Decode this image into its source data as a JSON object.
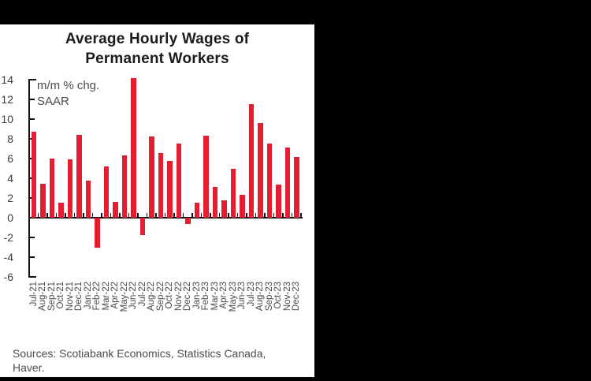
{
  "colors": {
    "background": "#000000",
    "panel": "#ffffff",
    "bar": "#e51d30",
    "axis": "#111111",
    "title_text": "#1b1b1b",
    "axis_label_text": "#3d3d3d",
    "annotation_text": "#4a4a4a",
    "sources_text": "#4d4d4d"
  },
  "footer": {
    "sources_line1": "Sources: Scotiabank Economics, Statistics Canada,",
    "sources_line2": "Haver."
  },
  "chart_data": {
    "type": "bar",
    "title": "Average Hourly Wages of Permanent Workers",
    "title_lines": [
      "Average Hourly Wages of",
      "Permanent Workers"
    ],
    "annotation_lines": [
      "m/m % chg.",
      "SAAR"
    ],
    "categories": [
      "Jul-21",
      "Aug-21",
      "Sep-21",
      "Oct-21",
      "Nov-21",
      "Dec-21",
      "Jan-22",
      "Feb-22",
      "Mar-22",
      "Apr-22",
      "May-22",
      "Jun-22",
      "Jul-22",
      "Aug-22",
      "Sep-22",
      "Oct-22",
      "Nov-22",
      "Dec-22",
      "Jan-23",
      "Feb-23",
      "Mar-23",
      "Apr-23",
      "May-23",
      "Jun-23",
      "Jul-23",
      "Aug-23",
      "Sep-23",
      "Oct-23",
      "Nov-23",
      "Dec-23"
    ],
    "values": [
      8.7,
      3.4,
      6.0,
      1.5,
      5.9,
      8.4,
      3.7,
      -3.1,
      5.2,
      1.6,
      6.3,
      14.1,
      -1.8,
      8.2,
      6.5,
      5.7,
      7.5,
      -0.7,
      1.5,
      8.3,
      3.1,
      1.7,
      4.9,
      2.3,
      11.5,
      9.6,
      7.5,
      3.3,
      7.1,
      6.1
    ],
    "xlabel": "",
    "ylabel": "",
    "ylim": [
      -6,
      14
    ],
    "yticks": [
      14,
      12,
      10,
      8,
      6,
      4,
      2,
      0,
      -2,
      -4,
      -6
    ],
    "bar_color": "#e51d30",
    "grid": false,
    "legend": false
  }
}
